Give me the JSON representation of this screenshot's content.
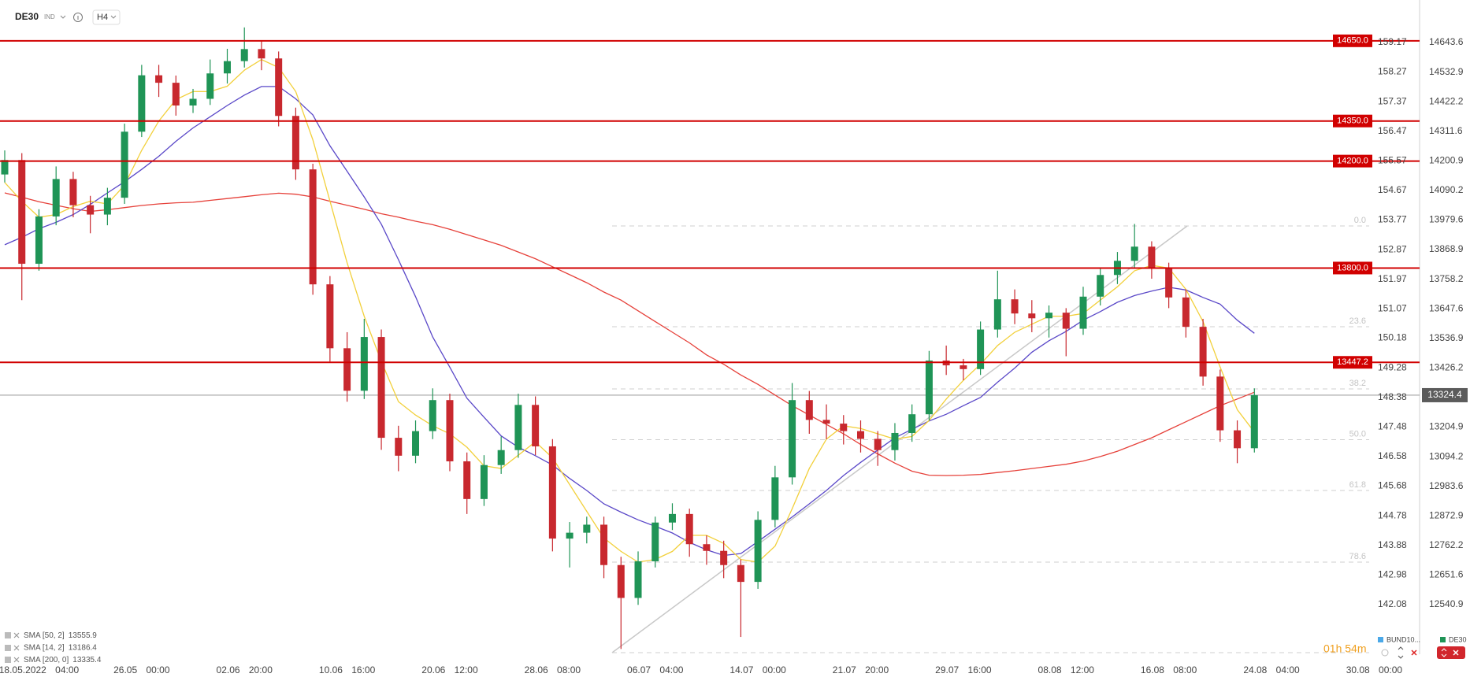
{
  "header": {
    "symbol": "DE30",
    "market": "IND",
    "timeframe": "H4"
  },
  "footer": {
    "timer": "01h 54m",
    "compare_symbol": "BUND10..."
  },
  "chart_data": {
    "type": "candlestick",
    "categories": [
      null,
      null,
      "18.05.2022 04:00",
      null,
      null,
      null,
      null,
      null,
      "26.05 00:00",
      null,
      null,
      null,
      null,
      null,
      "02.06 20:00",
      null,
      null,
      null,
      null,
      null,
      "10.06 16:00",
      null,
      null,
      null,
      null,
      null,
      "20.06 12:00",
      null,
      null,
      null,
      null,
      null,
      "28.06 08:00",
      null,
      null,
      null,
      null,
      null,
      "06.07 04:00",
      null,
      null,
      null,
      null,
      null,
      "14.07 00:00",
      null,
      null,
      null,
      null,
      null,
      "21.07 20:00",
      null,
      null,
      null,
      null,
      null,
      "29.07 16:00",
      null,
      null,
      null,
      null,
      null,
      "08.08 12:00",
      null,
      null,
      null,
      null,
      null,
      "16.08 08:00",
      null,
      null,
      null,
      null,
      null,
      "24.08 04:00",
      null,
      null,
      null,
      null,
      null,
      "30.08 00:00",
      null
    ],
    "ohlc": {
      "open": [
        14150,
        14204,
        13816,
        13993,
        14133,
        14035,
        14000,
        14063,
        14310,
        14521,
        14493,
        14408,
        14433,
        14528,
        14574,
        14619,
        14584,
        14369,
        14169,
        13739,
        13500,
        13341,
        13542,
        13165,
        13098,
        13190,
        13306,
        13077,
        12936,
        13063,
        13119,
        13288,
        13133,
        12788,
        12810,
        12840,
        12689,
        12566,
        12703,
        12848,
        12880,
        12767,
        12742,
        12689,
        12626,
        12858,
        13017,
        13306,
        13232,
        13218,
        13190,
        13161,
        13119,
        13183,
        13253,
        13454,
        13436,
        13422,
        13570,
        13683,
        13630,
        13612,
        13633,
        13573,
        13693,
        13774,
        13827,
        13880,
        13799,
        13690,
        13580,
        13394,
        13193,
        13126,
        null,
        null,
        null,
        null,
        null,
        null,
        null,
        null
      ],
      "high": [
        14240,
        14230,
        14020,
        14180,
        14160,
        14070,
        14100,
        14340,
        14560,
        14560,
        14520,
        14470,
        14580,
        14620,
        14700,
        14650,
        14610,
        14400,
        14190,
        13770,
        13560,
        13610,
        13570,
        13210,
        13230,
        13350,
        13330,
        13110,
        13100,
        13170,
        13330,
        13320,
        13160,
        12850,
        12870,
        12870,
        12720,
        12740,
        12870,
        12920,
        12900,
        12800,
        12780,
        12710,
        12890,
        13060,
        13370,
        13340,
        13290,
        13250,
        13230,
        13190,
        13220,
        13290,
        13490,
        13510,
        13460,
        13600,
        13790,
        13720,
        13680,
        13660,
        13650,
        13730,
        13800,
        13860,
        13965,
        13900,
        13820,
        13720,
        13610,
        13420,
        13230,
        13350,
        null,
        null,
        null,
        null,
        null,
        null,
        null,
        null
      ],
      "low": [
        14120,
        13680,
        13790,
        13960,
        13990,
        13930,
        13960,
        14040,
        14290,
        14440,
        14370,
        14380,
        14410,
        14490,
        14550,
        14540,
        14330,
        14130,
        13700,
        13450,
        13300,
        13310,
        13120,
        13040,
        13070,
        13160,
        13040,
        12880,
        12910,
        13030,
        13090,
        13100,
        12740,
        12680,
        12770,
        12640,
        12375,
        12540,
        12680,
        12820,
        12720,
        12690,
        12640,
        12420,
        12600,
        12830,
        12990,
        13180,
        13160,
        13140,
        13110,
        13060,
        13080,
        13150,
        13230,
        13400,
        13380,
        13400,
        13540,
        13590,
        13560,
        13540,
        13470,
        13550,
        13660,
        13740,
        13800,
        13760,
        13650,
        13540,
        13360,
        13150,
        13070,
        13110,
        null,
        null,
        null,
        null,
        null,
        null,
        null,
        null
      ],
      "close": [
        14204,
        13816,
        13993,
        14133,
        14035,
        14000,
        14063,
        14310,
        14521,
        14493,
        14408,
        14433,
        14528,
        14574,
        14619,
        14584,
        14369,
        14169,
        13739,
        13500,
        13341,
        13542,
        13165,
        13098,
        13190,
        13306,
        13077,
        12936,
        13063,
        13119,
        13288,
        13133,
        12788,
        12810,
        12840,
        12689,
        12566,
        12703,
        12848,
        12880,
        12767,
        12742,
        12689,
        12626,
        12858,
        13017,
        13306,
        13232,
        13218,
        13190,
        13161,
        13119,
        13183,
        13253,
        13454,
        13436,
        13422,
        13570,
        13683,
        13630,
        13612,
        13633,
        13573,
        13693,
        13774,
        13827,
        13880,
        13799,
        13690,
        13580,
        13394,
        13193,
        13126,
        13324.4,
        null,
        null,
        null,
        null,
        null,
        null,
        null,
        null
      ]
    },
    "up_color": "#1f9456",
    "down_color": "#c8282e",
    "indicators": [
      {
        "name": "SMA [50, 2]",
        "color": "#5a48c8",
        "values": [
          13887,
          13915,
          13947,
          13971,
          14000,
          14038,
          14081,
          14123,
          14169,
          14218,
          14274,
          14324,
          14366,
          14408,
          14447,
          14479,
          14479,
          14433,
          14373,
          14257,
          14162,
          14066,
          13964,
          13831,
          13693,
          13542,
          13429,
          13313,
          13242,
          13172,
          13130,
          13098,
          13063,
          13013,
          12968,
          12918,
          12887,
          12858,
          12834,
          12809,
          12774,
          12746,
          12725,
          12732,
          12777,
          12823,
          12869,
          12918,
          12968,
          13024,
          13073,
          13119,
          13165,
          13197,
          13228,
          13253,
          13285,
          13316,
          13373,
          13426,
          13485,
          13528,
          13563,
          13605,
          13637,
          13672,
          13697,
          13714,
          13728,
          13718,
          13690,
          13665,
          13605,
          13555.9,
          null,
          null,
          null,
          null,
          null,
          null,
          null,
          null
        ]
      },
      {
        "name": "SMA [14, 2]",
        "color": "#f2d03b",
        "values": [
          14120,
          14050,
          13990,
          14000,
          14030,
          14050,
          14040,
          14110,
          14240,
          14350,
          14430,
          14460,
          14460,
          14480,
          14540,
          14580,
          14550,
          14460,
          14280,
          14050,
          13820,
          13620,
          13450,
          13300,
          13250,
          13210,
          13180,
          13130,
          13060,
          13050,
          13100,
          13150,
          13090,
          12990,
          12890,
          12790,
          12740,
          12700,
          12710,
          12740,
          12800,
          12800,
          12770,
          12710,
          12700,
          12760,
          12900,
          13050,
          13160,
          13210,
          13200,
          13180,
          13160,
          13170,
          13230,
          13310,
          13380,
          13440,
          13510,
          13560,
          13590,
          13620,
          13620,
          13630,
          13680,
          13730,
          13790,
          13810,
          13800,
          13720,
          13600,
          13430,
          13270,
          13186.4,
          null,
          null,
          null,
          null,
          null,
          null,
          null,
          null
        ]
      },
      {
        "name": "SMA [200, 0]",
        "color": "#e6413a",
        "values": [
          14081,
          14065,
          14048,
          14035,
          14022,
          14012,
          14018,
          14026,
          14034,
          14040,
          14044,
          14046,
          14053,
          14060,
          14067,
          14074,
          14080,
          14076,
          14066,
          14050,
          14035,
          14020,
          14003,
          13990,
          13975,
          13962,
          13945,
          13925,
          13905,
          13885,
          13860,
          13835,
          13805,
          13775,
          13745,
          13710,
          13680,
          13640,
          13600,
          13560,
          13520,
          13475,
          13440,
          13400,
          13365,
          13325,
          13285,
          13250,
          13215,
          13180,
          13140,
          13105,
          13070,
          13040,
          13025,
          13024,
          13025,
          13028,
          13035,
          13042,
          13050,
          13058,
          13066,
          13078,
          13095,
          13115,
          13140,
          13165,
          13195,
          13225,
          13255,
          13285,
          13310,
          13335.4,
          null,
          null,
          null,
          null,
          null,
          null,
          null,
          null
        ]
      }
    ],
    "levels": [
      {
        "value": 14650,
        "label": "14650.0"
      },
      {
        "value": 14350,
        "label": "14350.0"
      },
      {
        "value": 14200,
        "label": "14200.0"
      },
      {
        "value": 13800,
        "label": "13800.0"
      },
      13447.2
    ],
    "level_color": "#d10000",
    "fib_levels": [
      {
        "value": 13957.4,
        "label": "0.0"
      },
      {
        "value": 13580.4,
        "label": "23.6"
      },
      {
        "value": 13347.8,
        "label": "38.2"
      },
      {
        "value": 13157.8,
        "label": "50.0"
      },
      {
        "value": 12968,
        "label": "61.8"
      },
      {
        "value": 12700,
        "label": "78.6"
      }
    ],
    "ylim": [
      12355.4,
      14802.6
    ],
    "yticks": [
      14643.6,
      14532.9,
      14422.2,
      14311.6,
      14200.9,
      14090.2,
      13979.6,
      13868.9,
      13758.2,
      13647.6,
      13536.9,
      13426.2,
      13204.9,
      13094.2,
      12983.6,
      12872.9,
      12762.2,
      12651.6,
      12540.9
    ],
    "y2lim": [
      140.57,
      160.46
    ],
    "y2ticks": [
      159.17,
      158.27,
      157.37,
      156.47,
      155.57,
      154.67,
      153.77,
      152.87,
      151.97,
      151.07,
      150.18,
      149.28,
      148.38,
      147.48,
      146.58,
      145.68,
      144.78,
      143.88,
      142.98,
      142.08
    ]
  }
}
